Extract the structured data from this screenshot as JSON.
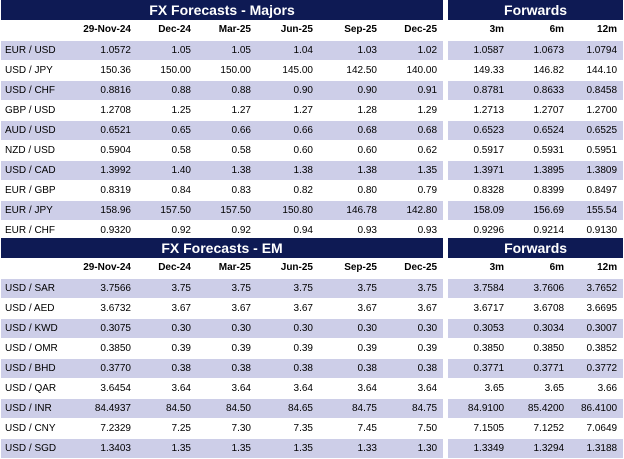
{
  "majors": {
    "title": "FX Forecasts - Majors",
    "forwards_title": "Forwards",
    "headers": [
      "29-Nov-24",
      "Dec-24",
      "Mar-25",
      "Jun-25",
      "Sep-25",
      "Dec-25"
    ],
    "forward_headers": [
      "3m",
      "6m",
      "12m"
    ],
    "rows": [
      {
        "pair": "EUR / USD",
        "values": [
          "1.0572",
          "1.05",
          "1.05",
          "1.04",
          "1.03",
          "1.02"
        ],
        "forwards": [
          "1.0587",
          "1.0673",
          "1.0794"
        ]
      },
      {
        "pair": "USD / JPY",
        "values": [
          "150.36",
          "150.00",
          "150.00",
          "145.00",
          "142.50",
          "140.00"
        ],
        "forwards": [
          "149.33",
          "146.82",
          "144.10"
        ]
      },
      {
        "pair": "USD / CHF",
        "values": [
          "0.8816",
          "0.88",
          "0.88",
          "0.90",
          "0.90",
          "0.91"
        ],
        "forwards": [
          "0.8781",
          "0.8633",
          "0.8458"
        ]
      },
      {
        "pair": "GBP / USD",
        "values": [
          "1.2708",
          "1.25",
          "1.27",
          "1.27",
          "1.28",
          "1.29"
        ],
        "forwards": [
          "1.2713",
          "1.2707",
          "1.2700"
        ]
      },
      {
        "pair": "AUD / USD",
        "values": [
          "0.6521",
          "0.65",
          "0.66",
          "0.66",
          "0.68",
          "0.68"
        ],
        "forwards": [
          "0.6523",
          "0.6524",
          "0.6525"
        ]
      },
      {
        "pair": "NZD / USD",
        "values": [
          "0.5904",
          "0.58",
          "0.58",
          "0.60",
          "0.60",
          "0.62"
        ],
        "forwards": [
          "0.5917",
          "0.5931",
          "0.5951"
        ]
      },
      {
        "pair": "USD / CAD",
        "values": [
          "1.3992",
          "1.40",
          "1.38",
          "1.38",
          "1.38",
          "1.35"
        ],
        "forwards": [
          "1.3971",
          "1.3895",
          "1.3809"
        ]
      },
      {
        "pair": "EUR / GBP",
        "values": [
          "0.8319",
          "0.84",
          "0.83",
          "0.82",
          "0.80",
          "0.79"
        ],
        "forwards": [
          "0.8328",
          "0.8399",
          "0.8497"
        ]
      },
      {
        "pair": "EUR / JPY",
        "values": [
          "158.96",
          "157.50",
          "157.50",
          "150.80",
          "146.78",
          "142.80"
        ],
        "forwards": [
          "158.09",
          "156.69",
          "155.54"
        ]
      },
      {
        "pair": "EUR / CHF",
        "values": [
          "0.9320",
          "0.92",
          "0.92",
          "0.94",
          "0.93",
          "0.93"
        ],
        "forwards": [
          "0.9296",
          "0.9214",
          "0.9130"
        ]
      }
    ]
  },
  "em": {
    "title": "FX Forecasts - EM",
    "forwards_title": "Forwards",
    "headers": [
      "29-Nov-24",
      "Dec-24",
      "Mar-25",
      "Jun-25",
      "Sep-25",
      "Dec-25"
    ],
    "forward_headers": [
      "3m",
      "6m",
      "12m"
    ],
    "rows": [
      {
        "pair": "USD / SAR",
        "values": [
          "3.7566",
          "3.75",
          "3.75",
          "3.75",
          "3.75",
          "3.75"
        ],
        "forwards": [
          "3.7584",
          "3.7606",
          "3.7652"
        ]
      },
      {
        "pair": "USD / AED",
        "values": [
          "3.6732",
          "3.67",
          "3.67",
          "3.67",
          "3.67",
          "3.67"
        ],
        "forwards": [
          "3.6717",
          "3.6708",
          "3.6695"
        ]
      },
      {
        "pair": "USD / KWD",
        "values": [
          "0.3075",
          "0.30",
          "0.30",
          "0.30",
          "0.30",
          "0.30"
        ],
        "forwards": [
          "0.3053",
          "0.3034",
          "0.3007"
        ]
      },
      {
        "pair": "USD / OMR",
        "values": [
          "0.3850",
          "0.39",
          "0.39",
          "0.39",
          "0.39",
          "0.39"
        ],
        "forwards": [
          "0.3850",
          "0.3850",
          "0.3852"
        ]
      },
      {
        "pair": "USD / BHD",
        "values": [
          "0.3770",
          "0.38",
          "0.38",
          "0.38",
          "0.38",
          "0.38"
        ],
        "forwards": [
          "0.3771",
          "0.3771",
          "0.3772"
        ]
      },
      {
        "pair": "USD / QAR",
        "values": [
          "3.6454",
          "3.64",
          "3.64",
          "3.64",
          "3.64",
          "3.64"
        ],
        "forwards": [
          "3.65",
          "3.65",
          "3.66"
        ]
      },
      {
        "pair": "USD / INR",
        "values": [
          "84.4937",
          "84.50",
          "84.50",
          "84.65",
          "84.75",
          "84.75"
        ],
        "forwards": [
          "84.9100",
          "85.4200",
          "86.4100"
        ]
      },
      {
        "pair": "USD / CNY",
        "values": [
          "7.2329",
          "7.25",
          "7.30",
          "7.35",
          "7.45",
          "7.50"
        ],
        "forwards": [
          "7.1505",
          "7.1252",
          "7.0649"
        ]
      },
      {
        "pair": "USD / SGD",
        "values": [
          "1.3403",
          "1.35",
          "1.35",
          "1.35",
          "1.33",
          "1.30"
        ],
        "forwards": [
          "1.3349",
          "1.3294",
          "1.3188"
        ]
      }
    ]
  }
}
